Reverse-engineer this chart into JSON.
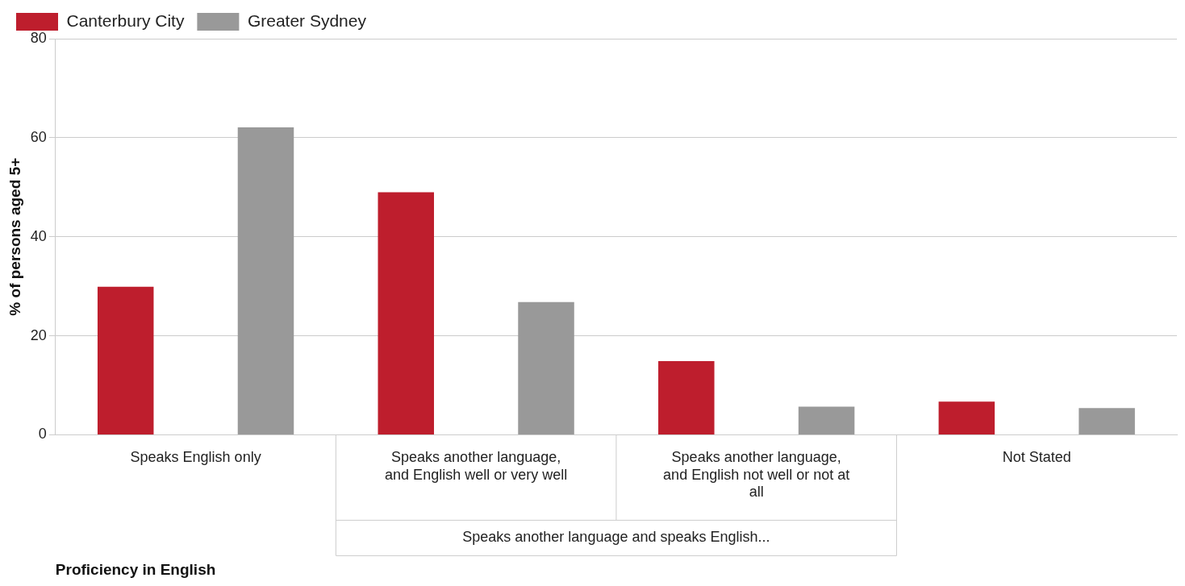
{
  "chart_data": {
    "type": "bar",
    "xlabel": "Proficiency in English",
    "ylabel": "% of persons aged 5+",
    "categories": [
      "Speaks English only",
      "Speaks another language, and English well or very well",
      "Speaks another language, and English not well or not at all",
      "Not Stated"
    ],
    "series": [
      {
        "name": "Canterbury City",
        "color": "#be1e2d",
        "values": [
          29.9,
          49,
          14.9,
          6.7
        ]
      },
      {
        "name": "Greater Sydney",
        "color": "#999999",
        "values": [
          62.1,
          26.8,
          5.7,
          5.4
        ]
      }
    ],
    "ylim": [
      0,
      80
    ],
    "yticks": [
      0,
      20,
      40,
      60,
      80
    ],
    "grid": "y",
    "legend": "top left",
    "annotations": [
      "Speaks another language and speaks English..."
    ]
  }
}
